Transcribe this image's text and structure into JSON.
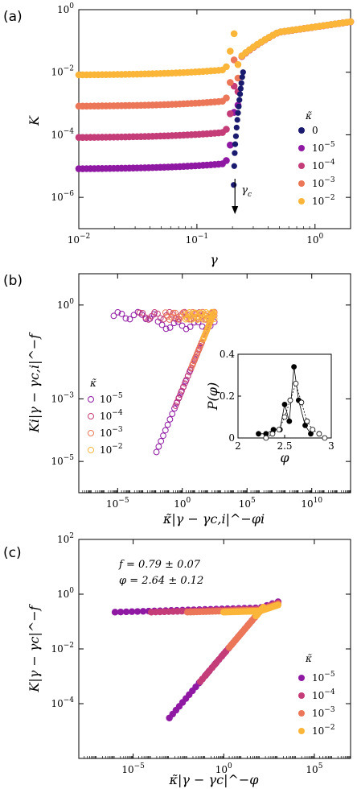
{
  "figure": {
    "panels": [
      "(a)",
      "(b)",
      "(c)"
    ]
  },
  "chart_data": [
    {
      "id": "a",
      "type": "scatter",
      "panel_label": "(a)",
      "xlabel": "γ",
      "ylabel": "K",
      "xscale": "log",
      "yscale": "log",
      "xlim": [
        0.01,
        2
      ],
      "ylim": [
        1e-07,
        1
      ],
      "xticks": [
        {
          "v": 0.01,
          "label": "10",
          "exp": "−2"
        },
        {
          "v": 0.1,
          "label": "10",
          "exp": "−1"
        },
        {
          "v": 1,
          "label": "10",
          "exp": "0"
        }
      ],
      "yticks": [
        {
          "v": 1e-06,
          "label": "10",
          "exp": "−6"
        },
        {
          "v": 0.0001,
          "label": "10",
          "exp": "−4"
        },
        {
          "v": 0.01,
          "label": "10",
          "exp": "−2"
        },
        {
          "v": 1,
          "label": "10",
          "exp": "0"
        }
      ],
      "legend_title": "κ̃",
      "legend_position": "right",
      "annotation": {
        "text": "γ",
        "sub": "c",
        "arrow": true,
        "x": 0.21
      },
      "series": [
        {
          "legend": "0",
          "legend_exp": "",
          "color": "#1a1a6e",
          "points": [
            [
              0.205,
              2.5e-06
            ],
            [
              0.207,
              1e-05
            ],
            [
              0.209,
              2.6e-05
            ],
            [
              0.211,
              5e-05
            ],
            [
              0.214,
              9e-05
            ],
            [
              0.217,
              0.00017
            ],
            [
              0.22,
              0.0003
            ],
            [
              0.223,
              0.0005
            ],
            [
              0.226,
              0.0008
            ],
            [
              0.229,
              0.0013
            ],
            [
              0.232,
              0.002
            ],
            [
              0.235,
              0.003
            ],
            [
              0.238,
              0.0045
            ],
            [
              0.242,
              0.007
            ],
            [
              0.246,
              0.01
            ]
          ]
        },
        {
          "legend": "10",
          "legend_exp": "−5",
          "color": "#8f19a3",
          "curve": {
            "K0": 8e-06,
            "gc": 0.21
          }
        },
        {
          "legend": "10",
          "legend_exp": "−4",
          "color": "#c43d78",
          "curve": {
            "K0": 8e-05,
            "gc": 0.21
          }
        },
        {
          "legend": "10",
          "legend_exp": "−3",
          "color": "#ec7758",
          "curve": {
            "K0": 0.0008,
            "gc": 0.21
          }
        },
        {
          "legend": "10",
          "legend_exp": "−2",
          "color": "#fbb63a",
          "curve": {
            "K0": 0.008,
            "gc": 0.21
          }
        }
      ]
    },
    {
      "id": "b",
      "type": "scatter",
      "panel_label": "(b)",
      "xlabel": "κ̃|γ − γc,i|^−φi",
      "ylabel": "Ki|γ − γc,i|^−f",
      "xscale": "log",
      "yscale": "log",
      "xlim": [
        1e-08,
        10000000000000.0
      ],
      "ylim": [
        1e-06,
        10
      ],
      "xticks": [
        {
          "v": 1e-05,
          "label": "10",
          "exp": "−5"
        },
        {
          "v": 1,
          "label": "10",
          "exp": "0"
        },
        {
          "v": 100000.0,
          "label": "10",
          "exp": "5"
        },
        {
          "v": 10000000000.0,
          "label": "10",
          "exp": "10"
        }
      ],
      "yticks": [
        {
          "v": 1e-05,
          "label": "10",
          "exp": "−5"
        },
        {
          "v": 0.001,
          "label": "10",
          "exp": "−3"
        },
        {
          "v": 1,
          "label": "10",
          "exp": "0"
        }
      ],
      "legend_title": "κ̃",
      "legend_position": "left",
      "series": [
        {
          "legend": "10",
          "legend_exp": "−5",
          "color": "#8f19a3",
          "open": true
        },
        {
          "legend": "10",
          "legend_exp": "−4",
          "color": "#c43d78",
          "open": true
        },
        {
          "legend": "10",
          "legend_exp": "−3",
          "color": "#ec7758",
          "open": true
        },
        {
          "legend": "10",
          "legend_exp": "−2",
          "color": "#fbb63a",
          "open": true
        }
      ],
      "inset": {
        "type": "line",
        "xlabel": "φ",
        "ylabel": "P(φ)",
        "xlim": [
          2,
          3
        ],
        "ylim": [
          0,
          0.4
        ],
        "xticks": [
          2,
          2.5,
          3
        ],
        "xtick_labels": [
          "2",
          "2.5",
          "3"
        ],
        "yticks": [
          0,
          0.2,
          0.4
        ],
        "ytick_labels": [
          "0",
          "0.2",
          "0.4"
        ],
        "series": [
          {
            "name": "filled",
            "filled": true,
            "points": [
              [
                2.22,
                0.02
              ],
              [
                2.3,
                0.02
              ],
              [
                2.38,
                0.04
              ],
              [
                2.45,
                0.04
              ],
              [
                2.5,
                0.16
              ],
              [
                2.55,
                0.08
              ],
              [
                2.6,
                0.34
              ],
              [
                2.65,
                0.18
              ],
              [
                2.72,
                0.06
              ],
              [
                2.78,
                0.02
              ]
            ]
          },
          {
            "name": "open",
            "filled": false,
            "points": [
              [
                2.3,
                0.0
              ],
              [
                2.37,
                0.02
              ],
              [
                2.44,
                0.04
              ],
              [
                2.5,
                0.1
              ],
              [
                2.56,
                0.18
              ],
              [
                2.62,
                0.26
              ],
              [
                2.68,
                0.17
              ],
              [
                2.74,
                0.08
              ],
              [
                2.8,
                0.04
              ],
              [
                2.87,
                0.02
              ],
              [
                2.93,
                0.0
              ]
            ]
          }
        ]
      }
    },
    {
      "id": "c",
      "type": "scatter",
      "panel_label": "(c)",
      "xlabel": "κ̃|γ − γc|^−φ",
      "ylabel": "K|γ − γc|^−f",
      "xscale": "log",
      "yscale": "log",
      "xlim": [
        1e-08,
        10000000.0
      ],
      "ylim": [
        1e-06,
        100
      ],
      "xticks": [
        {
          "v": 1e-05,
          "label": "10",
          "exp": "−5"
        },
        {
          "v": 1,
          "label": "10",
          "exp": "0"
        },
        {
          "v": 100000.0,
          "label": "10",
          "exp": "5"
        }
      ],
      "yticks": [
        {
          "v": 0.0001,
          "label": "10",
          "exp": "−4"
        },
        {
          "v": 0.01,
          "label": "10",
          "exp": "−2"
        },
        {
          "v": 1,
          "label": "10",
          "exp": "0"
        },
        {
          "v": 100,
          "label": "10",
          "exp": "2"
        }
      ],
      "legend_title": "κ̃",
      "legend_position": "bottom-right",
      "annotations": [
        {
          "text": "f = 0.79 ± 0.07"
        },
        {
          "text": "φ = 2.64 ± 0.12"
        }
      ],
      "series": [
        {
          "legend": "10",
          "legend_exp": "−5",
          "color": "#8f19a3"
        },
        {
          "legend": "10",
          "legend_exp": "−4",
          "color": "#c43d78"
        },
        {
          "legend": "10",
          "legend_exp": "−3",
          "color": "#ec7758"
        },
        {
          "legend": "10",
          "legend_exp": "−2",
          "color": "#fbb63a"
        }
      ]
    }
  ]
}
